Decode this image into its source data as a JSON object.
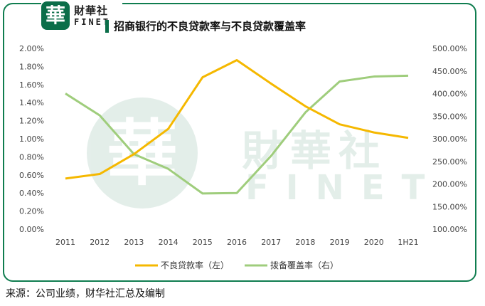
{
  "logo": {
    "seal_char": "華",
    "name_cn": "財華社",
    "name_en": "FINET"
  },
  "watermark": {
    "seal_char": "華",
    "name_cn": "財華社",
    "name_en": "FINET"
  },
  "title": "招商银行的不良贷款率与不良贷款覆盖率",
  "source": "来源：公司业绩，财华社汇总及编制",
  "colors": {
    "npl": "#f5b800",
    "coverage": "#9fcd7c",
    "frame": "#0f7d4f",
    "axis_text": "#444444"
  },
  "chart_data": {
    "type": "line",
    "title": "招商银行的不良贷款率与不良贷款覆盖率",
    "categories": [
      "2011",
      "2012",
      "2013",
      "2014",
      "2015",
      "2016",
      "2017",
      "2018",
      "2019",
      "2020",
      "1H21"
    ],
    "series": [
      {
        "name": "不良贷款率（左）",
        "axis": "left",
        "values": [
          0.56,
          0.61,
          0.83,
          1.11,
          1.68,
          1.87,
          1.61,
          1.36,
          1.16,
          1.07,
          1.01
        ]
      },
      {
        "name": "拨备覆盖率（右）",
        "axis": "right",
        "values": [
          400.1,
          351.8,
          266.0,
          233.4,
          178.9,
          180.0,
          262.1,
          358.2,
          426.8,
          437.7,
          439.5
        ]
      }
    ],
    "y_left": {
      "min": 0,
      "max": 2.0,
      "ticks": [
        "0.00%",
        "0.20%",
        "0.40%",
        "0.60%",
        "0.80%",
        "1.00%",
        "1.20%",
        "1.40%",
        "1.60%",
        "1.80%",
        "2.00%"
      ]
    },
    "y_right": {
      "min": 100,
      "max": 500,
      "ticks": [
        "100.00%",
        "150.00%",
        "200.00%",
        "250.00%",
        "300.00%",
        "350.00%",
        "400.00%",
        "450.00%",
        "500.00%"
      ]
    },
    "legend_position": "bottom",
    "grid": false
  }
}
